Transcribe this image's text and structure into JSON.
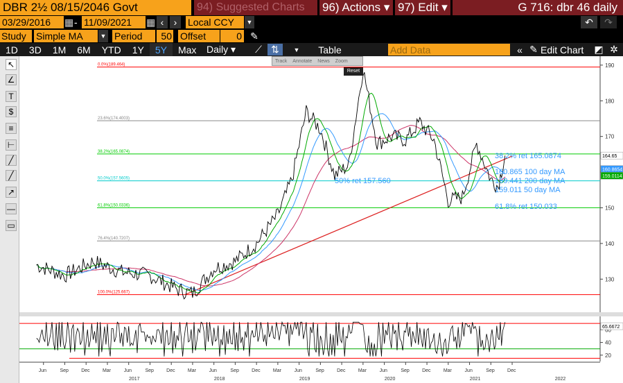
{
  "header": {
    "ticker": "DBR 2½ 08/15/2046 Govt",
    "suggested": "94) Suggested Charts",
    "actions": "96) Actions ▾",
    "edit": "97) Edit ▾",
    "gtitle": "G 716: dbr 46 daily"
  },
  "range": {
    "start": "03/29/2016",
    "end": "11/09/2021",
    "currency": "Local CCY"
  },
  "study": {
    "label": "Study",
    "type": "Simple MA",
    "period_label": "Period",
    "period": "50",
    "offset_label": "Offset",
    "offset": "0"
  },
  "toolbar": {
    "periods": [
      "1D",
      "3D",
      "1M",
      "6M",
      "YTD",
      "1Y",
      "5Y",
      "Max"
    ],
    "active": "5Y",
    "interval": "Daily ▾",
    "table": "Table",
    "add_data": "Add Data",
    "edit_chart": "Edit Chart"
  },
  "chart_tools": {
    "items": [
      "Track",
      "Annotate",
      "News",
      "Zoom"
    ],
    "reset": "Reset"
  },
  "colors": {
    "fib_red": "#ff0000",
    "fib_green": "#00cc00",
    "fib_cyan": "#00cccc",
    "ma50": "#00aa00",
    "ma100": "#3399ff",
    "ma200": "#cc3366",
    "trend": "#dd2222",
    "label_blue": "#3399ff"
  },
  "chart_data": {
    "type": "line",
    "yaxis": {
      "ticks": [
        130,
        140,
        150,
        160,
        170,
        180,
        190
      ],
      "range": [
        121.5,
        192.5
      ]
    },
    "xaxis": {
      "months": [
        "Jun",
        "Sep",
        "Dec",
        "Mar",
        "Jun",
        "Sep",
        "Dec",
        "Mar",
        "Jun",
        "Sep",
        "Dec",
        "Mar",
        "Jun",
        "Sep",
        "Dec",
        "Mar",
        "Jun",
        "Sep",
        "Dec",
        "Mar",
        "Jun",
        "Sep",
        "Dec"
      ],
      "years": [
        "2017",
        "2018",
        "2019",
        "2020",
        "2021",
        "2022"
      ]
    },
    "fib_levels": [
      {
        "label": "0.0%(189.464)",
        "value": 189.464,
        "color": "red"
      },
      {
        "label": "23.6%(174.4003)",
        "value": 174.4003,
        "color": "gray"
      },
      {
        "label": "38.2%(165.0874)",
        "value": 165.0874,
        "color": "green"
      },
      {
        "label": "50.0%(157.5605)",
        "value": 157.5605,
        "color": "cyan"
      },
      {
        "label": "61.8%(150.0336)",
        "value": 150.0336,
        "color": "green"
      },
      {
        "label": "76.4%(140.7207)",
        "value": 140.7207,
        "color": "gray"
      },
      {
        "label": "100.0%(125.667)",
        "value": 125.667,
        "color": "red"
      }
    ],
    "annotations": [
      {
        "text": "38.2% ret 165.0874"
      },
      {
        "text": "160.865 100 day MA"
      },
      {
        "text": "159.441 200 day MA"
      },
      {
        "text": "159.011 50 day MA"
      },
      {
        "text": "61.8% ret 150.033"
      },
      {
        "text": "50% ret 157.560"
      }
    ],
    "last_labels": {
      "price": "164.65",
      "ma100": "160.8654",
      "ma50": "159.0114"
    },
    "trendline": {
      "from": [
        "2018-02",
        125.7
      ],
      "to": [
        "2021-12",
        164.5
      ]
    },
    "price_series": {
      "x": [
        "2016-05",
        "2016-09",
        "2017-01",
        "2017-05",
        "2017-09",
        "2018-01",
        "2018-03",
        "2018-06",
        "2018-09",
        "2018-12",
        "2019-03",
        "2019-05",
        "2019-07",
        "2019-09",
        "2019-11",
        "2020-01",
        "2020-03",
        "2020-05",
        "2020-07",
        "2020-09",
        "2020-11",
        "2021-01",
        "2021-03",
        "2021-05",
        "2021-07",
        "2021-09",
        "2021-10",
        "2021-11"
      ],
      "y": [
        134,
        131,
        135,
        132,
        131,
        127,
        126,
        133,
        135,
        140,
        148,
        158,
        177,
        172,
        159,
        162,
        189,
        168,
        170,
        169,
        174,
        169,
        152,
        153,
        168,
        158,
        156,
        164.65
      ]
    },
    "rsi": {
      "ticks": [
        20,
        40,
        60
      ],
      "range": [
        10,
        80
      ],
      "last": "65.6672",
      "upper": 70,
      "lower": 30
    }
  }
}
